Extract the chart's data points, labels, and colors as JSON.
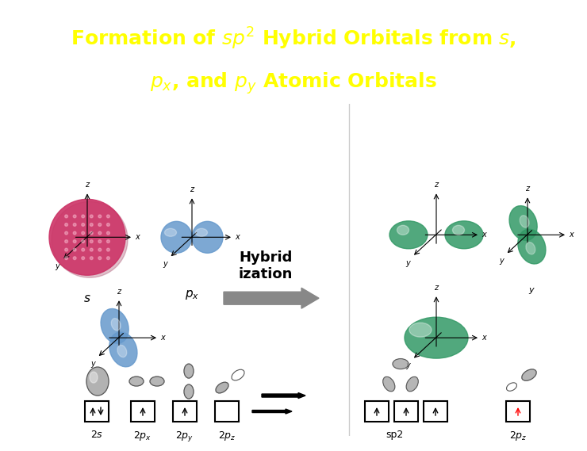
{
  "title_bg": "#000066",
  "title_fg": "#ffff00",
  "bg_color": "#ffffff",
  "s_color": "#cc3366",
  "p_color": "#6699cc",
  "sp2_color": "#339966",
  "pz_right_color": "#339966",
  "arrow_gray": "#888888",
  "title_fontsize": 18,
  "hyb_text": "Hybrid\nization",
  "s_label": "s",
  "px_label": "p_x",
  "py_label": "p_y",
  "bottom_labels_left": [
    "2s",
    "2p_x",
    "2p_y",
    "2p_z"
  ],
  "bottom_labels_right": [
    "sp2",
    "2p_z"
  ]
}
